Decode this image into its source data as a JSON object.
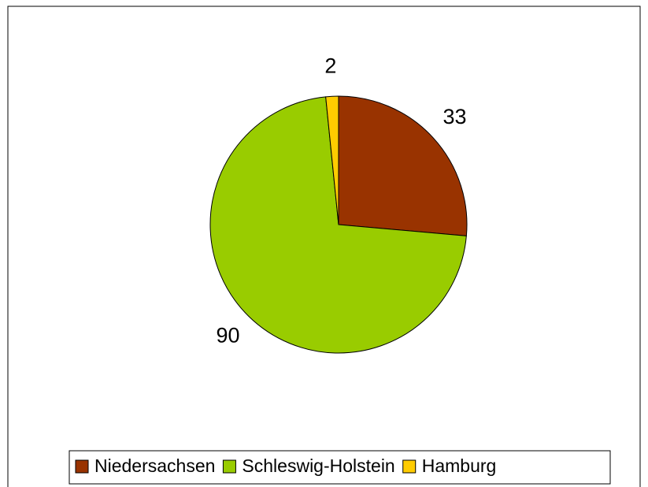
{
  "chart_data": {
    "type": "pie",
    "categories": [
      "Niedersachsen",
      "Schleswig-Holstein",
      "Hamburg"
    ],
    "values": [
      33,
      90,
      2
    ],
    "colors": [
      "#993300",
      "#99cc00",
      "#ffcc00"
    ],
    "legend": "bottom"
  }
}
